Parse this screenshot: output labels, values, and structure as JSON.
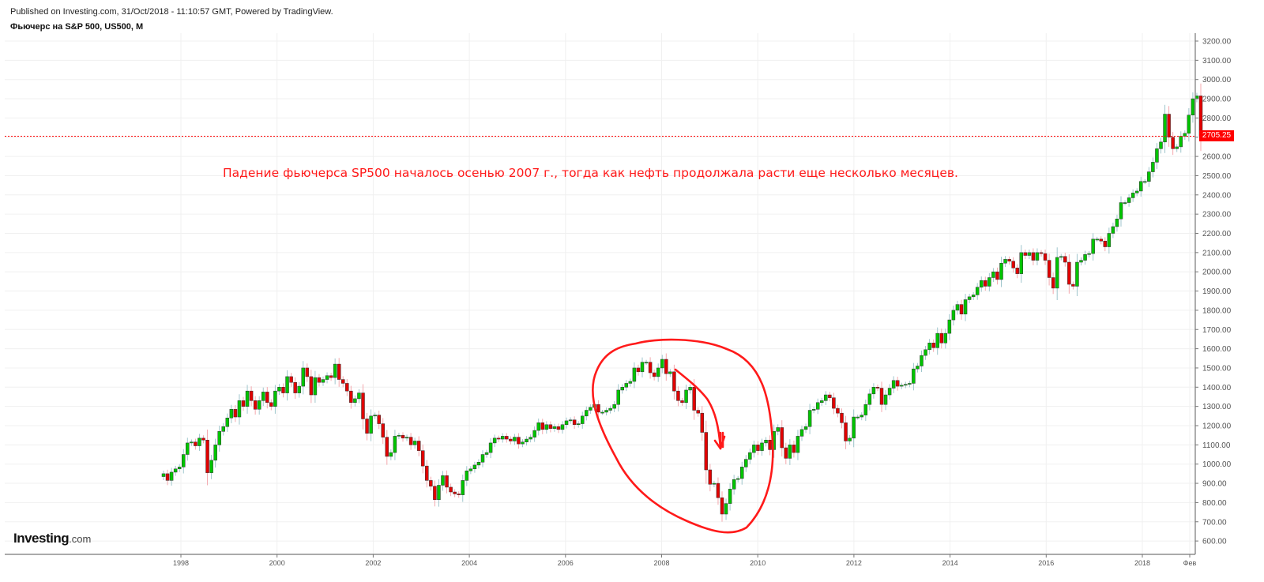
{
  "header": {
    "published": "Published on Investing.com, 31/Oct/2018 - 11:10:57 GMT, Powered by TradingView.",
    "title": "Фьючерс на S&P 500, US500, M"
  },
  "logo": {
    "main": "Investing",
    "suffix": ".com"
  },
  "annotation": {
    "text": "Падение фьючерса SP500 началось осенью 2007 г., тогда  как нефть продолжала расти еще несколько месяцев.",
    "color": "#ff1a1a"
  },
  "current_price": {
    "label": "2705.25",
    "value": 2705.25,
    "color": "#ff0000"
  },
  "colors": {
    "up": "#00c400",
    "down": "#e00000",
    "grid": "#f0f0f0",
    "axis": "#666666"
  },
  "chart_data": {
    "type": "candlestick",
    "title": "Фьючерс на S&P 500, US500, M",
    "interval": "monthly",
    "xlabel": "",
    "ylabel": "",
    "ylim": [
      550,
      3250
    ],
    "y_ticks": [
      "600.00",
      "700.00",
      "800.00",
      "900.00",
      "1000.00",
      "1100.00",
      "1200.00",
      "1300.00",
      "1400.00",
      "1500.00",
      "1600.00",
      "1700.00",
      "1800.00",
      "1900.00",
      "2000.00",
      "2100.00",
      "2200.00",
      "2300.00",
      "2400.00",
      "2500.00",
      "2600.00",
      "2700.00",
      "2800.00",
      "2900.00",
      "3000.00",
      "3100.00",
      "3200.00"
    ],
    "x_ticks": [
      "1998",
      "2000",
      "2002",
      "2004",
      "2006",
      "2008",
      "2010",
      "2012",
      "2014",
      "2016",
      "2018",
      "Фев"
    ],
    "grid": true,
    "start": "1997-09",
    "closes": [
      950,
      915,
      958,
      975,
      985,
      1050,
      1110,
      1115,
      1095,
      1135,
      1125,
      955,
      1020,
      1100,
      1170,
      1195,
      1240,
      1285,
      1245,
      1330,
      1300,
      1380,
      1330,
      1285,
      1330,
      1375,
      1320,
      1300,
      1380,
      1400,
      1370,
      1455,
      1425,
      1370,
      1405,
      1500,
      1455,
      1360,
      1450,
      1425,
      1440,
      1460,
      1450,
      1520,
      1440,
      1420,
      1380,
      1320,
      1340,
      1370,
      1235,
      1160,
      1250,
      1255,
      1210,
      1140,
      1040,
      1060,
      1145,
      1150,
      1135,
      1140,
      1100,
      1120,
      1070,
      990,
      915,
      885,
      815,
      890,
      940,
      880,
      855,
      845,
      840,
      915,
      965,
      975,
      995,
      1010,
      1050,
      1060,
      1110,
      1135,
      1130,
      1145,
      1130,
      1120,
      1140,
      1105,
      1115,
      1130,
      1140,
      1175,
      1215,
      1180,
      1205,
      1185,
      1195,
      1180,
      1205,
      1225,
      1230,
      1205,
      1210,
      1250,
      1280,
      1295,
      1310,
      1270,
      1270,
      1280,
      1290,
      1310,
      1385,
      1400,
      1420,
      1430,
      1500,
      1480,
      1530,
      1530,
      1475,
      1455,
      1500,
      1545,
      1470,
      1480,
      1380,
      1330,
      1320,
      1385,
      1400,
      1280,
      1265,
      1165,
      970,
      895,
      900,
      825,
      740,
      795,
      870,
      920,
      925,
      985,
      1025,
      1060,
      1100,
      1070,
      1110,
      1125,
      1075,
      1170,
      1190,
      1085,
      1030,
      1100,
      1060,
      1145,
      1180,
      1195,
      1280,
      1285,
      1320,
      1330,
      1360,
      1345,
      1290,
      1265,
      1215,
      1120,
      1135,
      1245,
      1245,
      1255,
      1310,
      1365,
      1400,
      1395,
      1310,
      1360,
      1395,
      1435,
      1405,
      1410,
      1415,
      1420,
      1495,
      1510,
      1565,
      1595,
      1630,
      1605,
      1680,
      1630,
      1680,
      1750,
      1800,
      1830,
      1780,
      1855,
      1870,
      1880,
      1920,
      1955,
      1925,
      1970,
      2000,
      1960,
      2045,
      2065,
      2055,
      2020,
      1990,
      2100,
      2085,
      2100,
      2060,
      2100,
      2095,
      2060,
      1970,
      1915,
      2075,
      2080,
      2050,
      1935,
      1925,
      2050,
      2060,
      2090,
      2095,
      2170,
      2170,
      2160,
      2130,
      2200,
      2235,
      2275,
      2360,
      2360,
      2385,
      2410,
      2420,
      2470,
      2470,
      2520,
      2570,
      2640,
      2675,
      2820,
      2700,
      2640,
      2650,
      2705,
      2720,
      2815,
      2900,
      2915,
      2705.25
    ],
    "last_value": 2705.25
  }
}
